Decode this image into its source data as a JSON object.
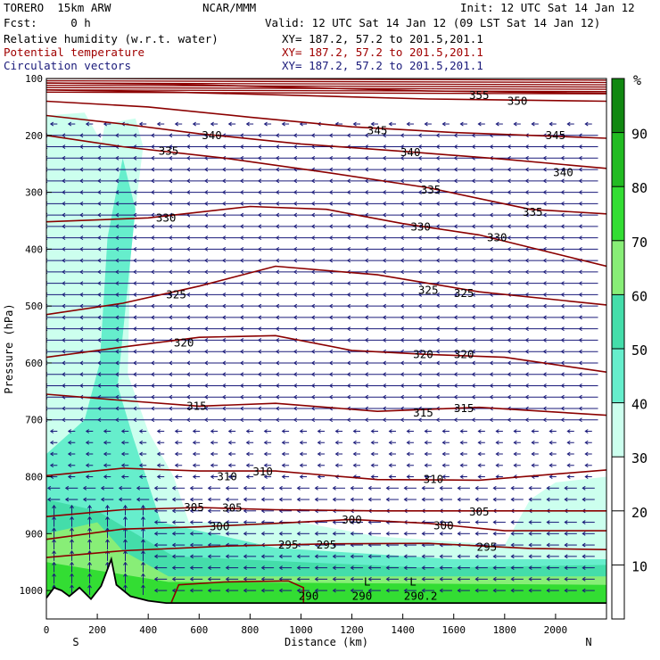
{
  "header": {
    "model": "TORERO  15km ARW",
    "org": "NCAR/MMM",
    "init": "Init: 12 UTC Sat 14 Jan 12",
    "fcst": "Fcst:     0 h",
    "valid": "Valid: 12 UTC Sat 14 Jan 12 (09 LST Sat 14 Jan 12)",
    "fields": [
      {
        "label": "Relative humidity (w.r.t. water)",
        "xy": "XY= 187.2, 57.2 to 201.5,201.1",
        "color": "#000000"
      },
      {
        "label": "Potential temperature",
        "xy": "XY= 187.2, 57.2 to 201.5,201.1",
        "color": "#a00000"
      },
      {
        "label": "Circulation vectors",
        "xy": "XY= 187.2, 57.2 to 201.5,201.1",
        "color": "#1a1a7a"
      }
    ]
  },
  "chart_data": {
    "type": "cross-section",
    "xlabel": "Distance (km)",
    "ylabel": "Pressure (hPa)",
    "xlim": [
      0,
      2200
    ],
    "ylim": [
      1050,
      100
    ],
    "x_ticks": [
      0,
      200,
      400,
      600,
      800,
      1000,
      1200,
      1400,
      1600,
      1800,
      2000
    ],
    "y_ticks": [
      100,
      200,
      300,
      400,
      500,
      600,
      700,
      800,
      900,
      1000
    ],
    "left_end_label": "S",
    "right_end_label": "N",
    "colorbar": {
      "unit": "%",
      "levels": [
        0,
        10,
        20,
        30,
        40,
        50,
        60,
        70,
        80,
        90,
        100
      ],
      "tick_labels": [
        10,
        20,
        30,
        40,
        50,
        60,
        70,
        80,
        90
      ],
      "colors": [
        "#ffffff",
        "#ffffff",
        "#ffffff",
        "#ccffee",
        "#66eecc",
        "#44ddaa",
        "#88ee77",
        "#33dd33",
        "#22bb22",
        "#118811"
      ]
    },
    "theta_contour_labels": [
      {
        "text": "355",
        "x": 1700,
        "p": 130
      },
      {
        "text": "350",
        "x": 1850,
        "p": 140
      },
      {
        "text": "345",
        "x": 1300,
        "p": 192
      },
      {
        "text": "345",
        "x": 2000,
        "p": 200
      },
      {
        "text": "340",
        "x": 650,
        "p": 200
      },
      {
        "text": "340",
        "x": 1430,
        "p": 230
      },
      {
        "text": "340",
        "x": 2030,
        "p": 265
      },
      {
        "text": "335",
        "x": 480,
        "p": 228
      },
      {
        "text": "335",
        "x": 1510,
        "p": 296
      },
      {
        "text": "335",
        "x": 1910,
        "p": 335
      },
      {
        "text": "330",
        "x": 470,
        "p": 345
      },
      {
        "text": "330",
        "x": 1470,
        "p": 361
      },
      {
        "text": "330",
        "x": 1770,
        "p": 380
      },
      {
        "text": "325",
        "x": 510,
        "p": 480
      },
      {
        "text": "325",
        "x": 1500,
        "p": 472
      },
      {
        "text": "325",
        "x": 1640,
        "p": 478
      },
      {
        "text": "320",
        "x": 540,
        "p": 565
      },
      {
        "text": "320",
        "x": 1480,
        "p": 585
      },
      {
        "text": "320",
        "x": 1640,
        "p": 585
      },
      {
        "text": "315",
        "x": 590,
        "p": 676
      },
      {
        "text": "315",
        "x": 1480,
        "p": 688
      },
      {
        "text": "315",
        "x": 1640,
        "p": 680
      },
      {
        "text": "310",
        "x": 710,
        "p": 800
      },
      {
        "text": "310",
        "x": 850,
        "p": 791
      },
      {
        "text": "310",
        "x": 1520,
        "p": 805
      },
      {
        "text": "305",
        "x": 580,
        "p": 854
      },
      {
        "text": "305",
        "x": 730,
        "p": 855
      },
      {
        "text": "305",
        "x": 1700,
        "p": 862
      },
      {
        "text": "300",
        "x": 680,
        "p": 888
      },
      {
        "text": "300",
        "x": 1200,
        "p": 876
      },
      {
        "text": "300",
        "x": 1560,
        "p": 886
      },
      {
        "text": "295",
        "x": 950,
        "p": 920
      },
      {
        "text": "295",
        "x": 1100,
        "p": 920
      },
      {
        "text": "295",
        "x": 1730,
        "p": 924
      },
      {
        "text": "290",
        "x": 1030,
        "p": 1010
      },
      {
        "text": "290",
        "x": 1240,
        "p": 1010
      },
      {
        "text": "290.2",
        "x": 1470,
        "p": 1010
      }
    ],
    "low_markers": [
      {
        "text": "L",
        "x": 1260,
        "p": 985
      },
      {
        "text": "L",
        "x": 1440,
        "p": 985
      }
    ],
    "theta_contours": [
      {
        "level": 355,
        "points": [
          [
            0,
            108
          ],
          [
            500,
            110
          ],
          [
            1000,
            116
          ],
          [
            1500,
            122
          ],
          [
            2200,
            126
          ]
        ]
      },
      {
        "level": 350,
        "points": [
          [
            0,
            120
          ],
          [
            500,
            124
          ],
          [
            1000,
            130
          ],
          [
            1500,
            136
          ],
          [
            2200,
            140
          ]
        ]
      },
      {
        "level": 345,
        "points": [
          [
            0,
            140
          ],
          [
            400,
            150
          ],
          [
            800,
            168
          ],
          [
            1200,
            185
          ],
          [
            1600,
            195
          ],
          [
            2200,
            205
          ]
        ]
      },
      {
        "level": 340,
        "points": [
          [
            0,
            165
          ],
          [
            300,
            180
          ],
          [
            600,
            197
          ],
          [
            1000,
            215
          ],
          [
            1400,
            228
          ],
          [
            1800,
            242
          ],
          [
            2200,
            258
          ]
        ]
      },
      {
        "level": 335,
        "points": [
          [
            0,
            200
          ],
          [
            300,
            220
          ],
          [
            700,
            240
          ],
          [
            1100,
            265
          ],
          [
            1500,
            292
          ],
          [
            1900,
            330
          ],
          [
            2200,
            338
          ]
        ]
      },
      {
        "level": 330,
        "points": [
          [
            0,
            352
          ],
          [
            400,
            345
          ],
          [
            800,
            325
          ],
          [
            1100,
            330
          ],
          [
            1400,
            355
          ],
          [
            1700,
            375
          ],
          [
            2200,
            430
          ]
        ]
      },
      {
        "level": 325,
        "points": [
          [
            0,
            515
          ],
          [
            300,
            495
          ],
          [
            600,
            465
          ],
          [
            900,
            430
          ],
          [
            1300,
            445
          ],
          [
            1700,
            475
          ],
          [
            2200,
            498
          ]
        ]
      },
      {
        "level": 320,
        "points": [
          [
            0,
            590
          ],
          [
            300,
            572
          ],
          [
            600,
            555
          ],
          [
            900,
            552
          ],
          [
            1200,
            578
          ],
          [
            1500,
            585
          ],
          [
            1800,
            590
          ],
          [
            2200,
            616
          ]
        ]
      },
      {
        "level": 315,
        "points": [
          [
            0,
            655
          ],
          [
            300,
            666
          ],
          [
            600,
            676
          ],
          [
            900,
            671
          ],
          [
            1300,
            685
          ],
          [
            1700,
            678
          ],
          [
            2200,
            692
          ]
        ]
      },
      {
        "level": 310,
        "points": [
          [
            0,
            798
          ],
          [
            300,
            785
          ],
          [
            600,
            790
          ],
          [
            900,
            790
          ],
          [
            1300,
            805
          ],
          [
            1700,
            806
          ],
          [
            2200,
            788
          ]
        ]
      },
      {
        "level": 305,
        "points": [
          [
            0,
            870
          ],
          [
            300,
            858
          ],
          [
            600,
            854
          ],
          [
            900,
            858
          ],
          [
            1300,
            860
          ],
          [
            1700,
            860
          ],
          [
            2200,
            860
          ]
        ]
      },
      {
        "level": 300,
        "points": [
          [
            0,
            910
          ],
          [
            300,
            892
          ],
          [
            600,
            888
          ],
          [
            900,
            882
          ],
          [
            1200,
            875
          ],
          [
            1500,
            882
          ],
          [
            1800,
            895
          ],
          [
            2200,
            895
          ]
        ]
      },
      {
        "level": 295,
        "points": [
          [
            0,
            942
          ],
          [
            300,
            930
          ],
          [
            700,
            922
          ],
          [
            1100,
            918
          ],
          [
            1500,
            917
          ],
          [
            1900,
            926
          ],
          [
            2200,
            928
          ]
        ]
      }
    ],
    "rh_regions": [
      {
        "rh": 35,
        "points": [
          [
            0,
            730
          ],
          [
            200,
            680
          ],
          [
            250,
            500
          ],
          [
            270,
            400
          ],
          [
            240,
            230
          ],
          [
            150,
            160
          ],
          [
            0,
            165
          ]
        ]
      },
      {
        "rh": 35,
        "points": [
          [
            230,
            180
          ],
          [
            350,
            170
          ],
          [
            380,
            220
          ],
          [
            330,
            400
          ],
          [
            320,
            620
          ],
          [
            400,
            720
          ],
          [
            500,
            800
          ],
          [
            560,
            880
          ],
          [
            1000,
            880
          ],
          [
            1300,
            905
          ],
          [
            1800,
            920
          ],
          [
            1900,
            840
          ],
          [
            2000,
            810
          ],
          [
            2200,
            800
          ],
          [
            2200,
            1050
          ],
          [
            0,
            1050
          ],
          [
            0,
            730
          ]
        ]
      },
      {
        "rh": 45,
        "points": [
          [
            0,
            760
          ],
          [
            150,
            700
          ],
          [
            210,
            600
          ],
          [
            240,
            380
          ],
          [
            300,
            240
          ],
          [
            350,
            330
          ],
          [
            280,
            640
          ],
          [
            340,
            730
          ],
          [
            450,
            880
          ],
          [
            900,
            925
          ],
          [
            1600,
            945
          ],
          [
            2200,
            945
          ],
          [
            2200,
            1050
          ],
          [
            0,
            1050
          ]
        ]
      },
      {
        "rh": 55,
        "points": [
          [
            0,
            840
          ],
          [
            200,
            860
          ],
          [
            350,
            900
          ],
          [
            500,
            940
          ],
          [
            1500,
            960
          ],
          [
            2200,
            955
          ],
          [
            2200,
            1050
          ],
          [
            0,
            1050
          ]
        ]
      },
      {
        "rh": 65,
        "points": [
          [
            0,
            900
          ],
          [
            200,
            880
          ],
          [
            300,
            930
          ],
          [
            480,
            975
          ],
          [
            2200,
            975
          ],
          [
            2200,
            1050
          ],
          [
            0,
            1050
          ]
        ]
      },
      {
        "rh": 75,
        "points": [
          [
            0,
            950
          ],
          [
            480,
            985
          ],
          [
            2200,
            990
          ],
          [
            2200,
            1050
          ],
          [
            0,
            1050
          ]
        ]
      }
    ],
    "terrain": [
      [
        0,
        1013
      ],
      [
        30,
        995
      ],
      [
        60,
        1000
      ],
      [
        90,
        1010
      ],
      [
        130,
        995
      ],
      [
        175,
        1015
      ],
      [
        215,
        992
      ],
      [
        255,
        945
      ],
      [
        275,
        990
      ],
      [
        330,
        1010
      ],
      [
        400,
        1018
      ],
      [
        470,
        1022
      ],
      [
        520,
        1022
      ],
      [
        1000,
        1022
      ],
      [
        2200,
        1022
      ]
    ],
    "wind_field": {
      "upper": {
        "p_top": 200,
        "p_bottom": 700,
        "u": -28
      },
      "boundary_layer": {
        "p_top": 820,
        "p_bottom": 1000,
        "u": -18
      }
    }
  }
}
